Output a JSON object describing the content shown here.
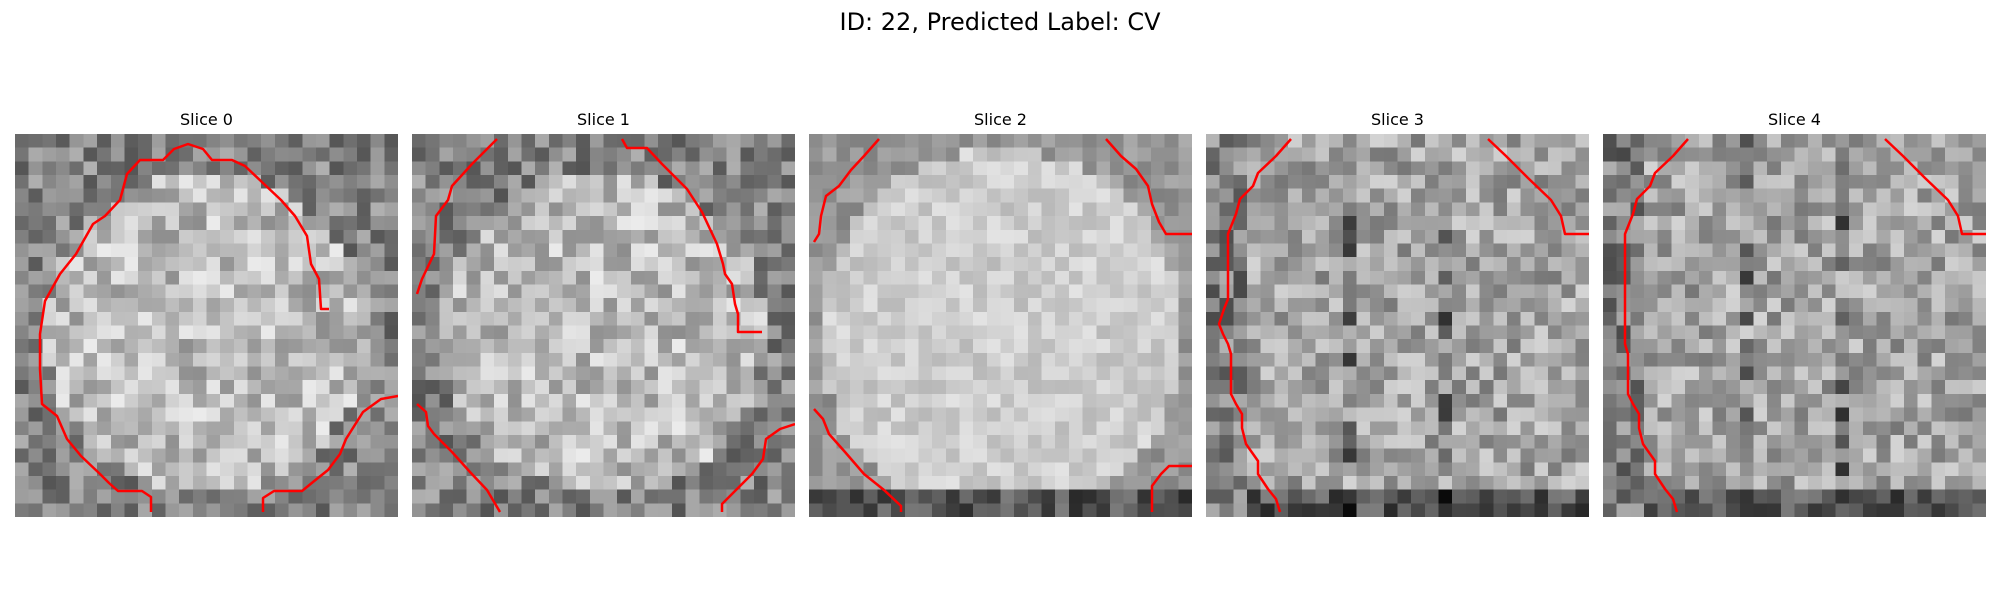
{
  "figure": {
    "title": "ID: 22, Predicted Label: CV",
    "slices": [
      {
        "title": "Slice 0",
        "seed": 11,
        "pattern": "round",
        "dark_bottom": false,
        "dark_left": false
      },
      {
        "title": "Slice 1",
        "seed": 23,
        "pattern": "round",
        "dark_bottom": false,
        "dark_left": false
      },
      {
        "title": "Slice 2",
        "seed": 37,
        "pattern": "smooth",
        "dark_bottom": true,
        "dark_left": false
      },
      {
        "title": "Slice 3",
        "seed": 41,
        "pattern": "noisy",
        "dark_bottom": true,
        "dark_left": true
      },
      {
        "title": "Slice 4",
        "seed": 53,
        "pattern": "noisy",
        "dark_bottom": true,
        "dark_left": true
      }
    ],
    "contour_color": "#ff0000"
  }
}
